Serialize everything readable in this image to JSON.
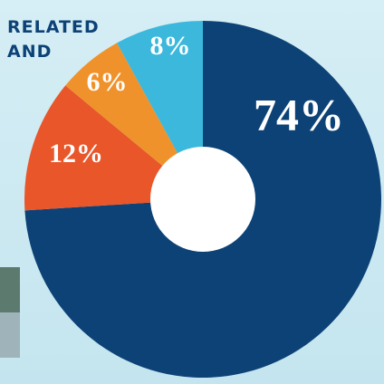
{
  "chart_data": {
    "type": "donut",
    "texts": [
      "RELATED",
      "AND"
    ],
    "categories": [
      null,
      null,
      null,
      null
    ],
    "values": [
      74,
      12,
      6,
      8
    ],
    "value_labels": [
      "74%",
      "12%",
      "6%",
      "8%"
    ],
    "colors": [
      "#0d4277",
      "#e8562a",
      "#f0922b",
      "#3bb8dc"
    ]
  }
}
